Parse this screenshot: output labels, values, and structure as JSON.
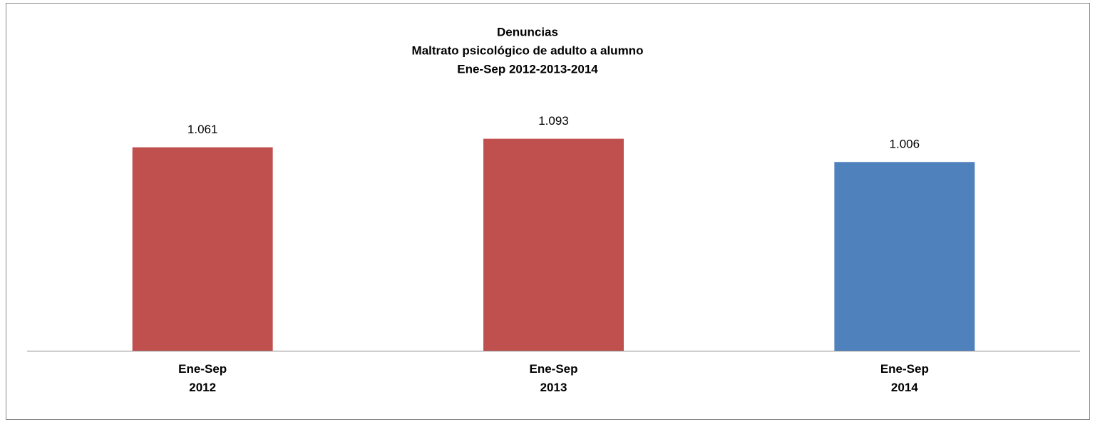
{
  "chart_data": {
    "type": "bar",
    "title": [
      "Denuncias",
      "Maltrato psicológico de adulto a alumno",
      "Ene-Sep 2012-2013-2014"
    ],
    "categories": [
      "Ene-Sep 2012",
      "Ene-Sep 2013",
      "Ene-Sep 2014"
    ],
    "values": [
      1061,
      1093,
      1006
    ],
    "value_labels": [
      "1.061",
      "1.093",
      "1.006"
    ],
    "colors": [
      "#c0504d",
      "#c0504d",
      "#4f81bd"
    ],
    "ylim": [
      300,
      1200
    ]
  }
}
